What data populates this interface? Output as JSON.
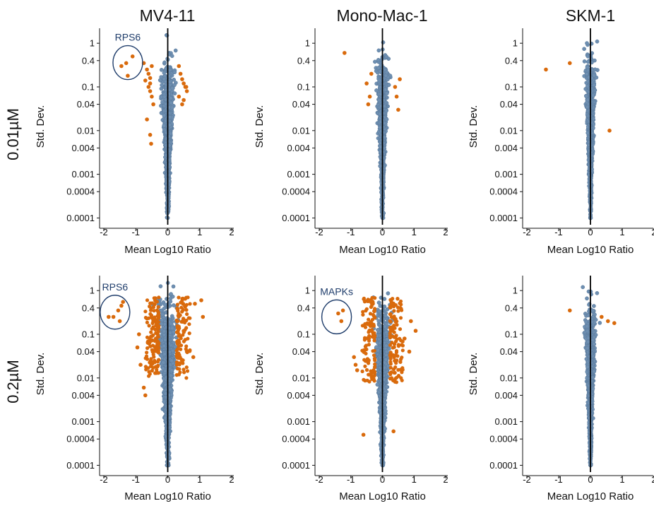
{
  "row_labels": [
    "0.01µM",
    "0.2µM"
  ],
  "column_titles": [
    "MV4-11",
    "Mono-Mac-1",
    "SKM-1"
  ],
  "colors": {
    "points": "#6e8fb1",
    "points_edge": "#5a7a9c",
    "highlight": "#d96a0c",
    "axis": "#111111",
    "zero_line": "#000000",
    "circle": "#1f3d6b",
    "annotation_text": "#1f3d6b"
  },
  "chart_data": [
    {
      "type": "scatter",
      "row": 0,
      "col": 0,
      "title": "MV4-11",
      "xlabel": "Mean Log10 Ratio",
      "ylabel": "Std. Dev.",
      "xlim": [
        -2,
        2
      ],
      "ylim": [
        7e-05,
        2.2
      ],
      "yscale": "log",
      "xticks": [
        "-2",
        "-1",
        "0",
        "1",
        "2"
      ],
      "yticks": [
        "1",
        "0.4",
        "0.1",
        "0.04",
        "0.01",
        "0.004",
        "0.001",
        "0.0004",
        "0.0001"
      ],
      "annotation": {
        "label": "RPS6",
        "center": [
          -1.25,
          0.36
        ]
      },
      "blue_spread": 0.24,
      "blue_max": 2.2,
      "orange": [
        [
          -1.45,
          0.3
        ],
        [
          -1.3,
          0.35
        ],
        [
          -1.1,
          0.5
        ],
        [
          -1.25,
          0.18
        ],
        [
          -0.75,
          0.35
        ],
        [
          -0.65,
          0.25
        ],
        [
          -0.6,
          0.2
        ],
        [
          -0.55,
          0.16
        ],
        [
          -0.7,
          0.14
        ],
        [
          -0.5,
          0.3
        ],
        [
          -0.6,
          0.1
        ],
        [
          -0.55,
          0.08
        ],
        [
          -0.5,
          0.06
        ],
        [
          -0.65,
          0.018
        ],
        [
          -0.55,
          0.008
        ],
        [
          -0.52,
          0.005
        ],
        [
          0.35,
          0.3
        ],
        [
          0.45,
          0.15
        ],
        [
          0.5,
          0.12
        ],
        [
          0.55,
          0.1
        ],
        [
          0.6,
          0.08
        ],
        [
          0.35,
          0.06
        ],
        [
          0.5,
          0.05
        ],
        [
          0.4,
          0.2
        ],
        [
          0.58,
          0.1
        ],
        [
          -0.45,
          0.04
        ],
        [
          0.45,
          0.04
        ],
        [
          -0.55,
          0.12
        ]
      ]
    },
    {
      "type": "scatter",
      "row": 0,
      "col": 1,
      "title": "Mono-Mac-1",
      "xlabel": "Mean Log10 Ratio",
      "ylabel": "Std. Dev.",
      "xlim": [
        -2,
        2
      ],
      "ylim": [
        7e-05,
        2.2
      ],
      "yscale": "log",
      "xticks": [
        "-2",
        "-1",
        "0",
        "1",
        "2"
      ],
      "yticks": [
        "1",
        "0.4",
        "0.1",
        "0.04",
        "0.01",
        "0.004",
        "0.001",
        "0.0004",
        "0.0001"
      ],
      "blue_spread": 0.2,
      "blue_max": 1.4,
      "orange": [
        [
          -1.2,
          0.6
        ],
        [
          -0.5,
          0.12
        ],
        [
          -0.4,
          0.06
        ],
        [
          -0.45,
          0.04
        ],
        [
          0.55,
          0.15
        ],
        [
          0.4,
          0.1
        ],
        [
          0.45,
          0.06
        ],
        [
          0.5,
          0.03
        ],
        [
          -0.35,
          0.2
        ]
      ]
    },
    {
      "type": "scatter",
      "row": 0,
      "col": 2,
      "title": "SKM-1",
      "xlabel": "Mean Log10 Ratio",
      "ylabel": "Std. Dev.",
      "xlim": [
        -2,
        2
      ],
      "ylim": [
        7e-05,
        2.2
      ],
      "yscale": "log",
      "xticks": [
        "-2",
        "-1",
        "0",
        "1",
        "2"
      ],
      "yticks": [
        "1",
        "0.4",
        "0.1",
        "0.04",
        "0.01",
        "0.004",
        "0.001",
        "0.0004",
        "0.0001"
      ],
      "blue_spread": 0.17,
      "blue_max": 1.3,
      "orange": [
        [
          -1.4,
          0.25
        ],
        [
          -0.65,
          0.35
        ],
        [
          0.6,
          0.01
        ]
      ]
    },
    {
      "type": "scatter",
      "row": 1,
      "col": 0,
      "title": "",
      "xlabel": "Mean Log10 Ratio",
      "ylabel": "Std. Dev.",
      "xlim": [
        -2,
        2
      ],
      "ylim": [
        7e-05,
        2.2
      ],
      "yscale": "log",
      "xticks": [
        "-2",
        "-1",
        "0",
        "1",
        "2"
      ],
      "yticks": [
        "1",
        "0.4",
        "0.1",
        "0.04",
        "0.01",
        "0.004",
        "0.001",
        "0.0004",
        "0.0001"
      ],
      "annotation": {
        "label": "RPS6",
        "center": [
          -1.65,
          0.32
        ]
      },
      "blue_spread": 0.3,
      "blue_max": 2.0,
      "orange": [
        [
          -1.85,
          0.25
        ],
        [
          -1.7,
          0.25
        ],
        [
          -1.55,
          0.35
        ],
        [
          -1.45,
          0.45
        ],
        [
          -1.4,
          0.55
        ],
        [
          -1.5,
          0.2
        ],
        [
          0.85,
          0.5
        ],
        [
          1.05,
          0.6
        ],
        [
          1.1,
          0.25
        ],
        [
          0.6,
          0.04
        ],
        [
          0.8,
          0.03
        ],
        [
          -0.9,
          0.1
        ],
        [
          -0.95,
          0.05
        ],
        [
          -0.85,
          0.02
        ],
        [
          -0.75,
          0.006
        ],
        [
          -0.7,
          0.004
        ]
      ],
      "orange_cloud": {
        "count": 240,
        "inner": 0.28,
        "outer": 0.7,
        "ymin": 0.01,
        "ymax": 0.7
      }
    },
    {
      "type": "scatter",
      "row": 1,
      "col": 1,
      "title": "",
      "xlabel": "Mean Log10 Ratio",
      "ylabel": "Std. Dev.",
      "xlim": [
        -2,
        2
      ],
      "ylim": [
        7e-05,
        2.2
      ],
      "yscale": "log",
      "xticks": [
        "-2",
        "-1",
        "0",
        "1",
        "2"
      ],
      "yticks": [
        "1",
        "0.4",
        "0.1",
        "0.04",
        "0.01",
        "0.004",
        "0.001",
        "0.0004",
        "0.0001"
      ],
      "annotation": {
        "label": "MAPKs",
        "center": [
          -1.45,
          0.25
        ]
      },
      "blue_spread": 0.27,
      "blue_max": 2.0,
      "orange": [
        [
          -1.4,
          0.3
        ],
        [
          -1.3,
          0.2
        ],
        [
          -1.25,
          0.35
        ],
        [
          0.9,
          0.2
        ],
        [
          1.05,
          0.12
        ],
        [
          -0.9,
          0.03
        ],
        [
          -0.85,
          0.02
        ],
        [
          -0.8,
          0.015
        ],
        [
          -0.6,
          0.0005
        ],
        [
          0.35,
          0.0006
        ],
        [
          0.7,
          0.08
        ],
        [
          0.85,
          0.04
        ]
      ],
      "orange_cloud": {
        "count": 240,
        "inner": 0.24,
        "outer": 0.65,
        "ymin": 0.008,
        "ymax": 0.7
      }
    },
    {
      "type": "scatter",
      "row": 1,
      "col": 2,
      "title": "",
      "xlabel": "Mean Log10 Ratio",
      "ylabel": "Std. Dev.",
      "xlim": [
        -2,
        2
      ],
      "ylim": [
        7e-05,
        2.2
      ],
      "yscale": "log",
      "xticks": [
        "-2",
        "-1",
        "0",
        "1",
        "2"
      ],
      "yticks": [
        "1",
        "0.4",
        "0.1",
        "0.04",
        "0.01",
        "0.004",
        "0.001",
        "0.0004",
        "0.0001"
      ],
      "blue_spread": 0.19,
      "blue_max": 1.2,
      "orange": [
        [
          -0.65,
          0.35
        ],
        [
          0.55,
          0.2
        ],
        [
          0.75,
          0.18
        ],
        [
          0.35,
          0.25
        ]
      ]
    }
  ]
}
